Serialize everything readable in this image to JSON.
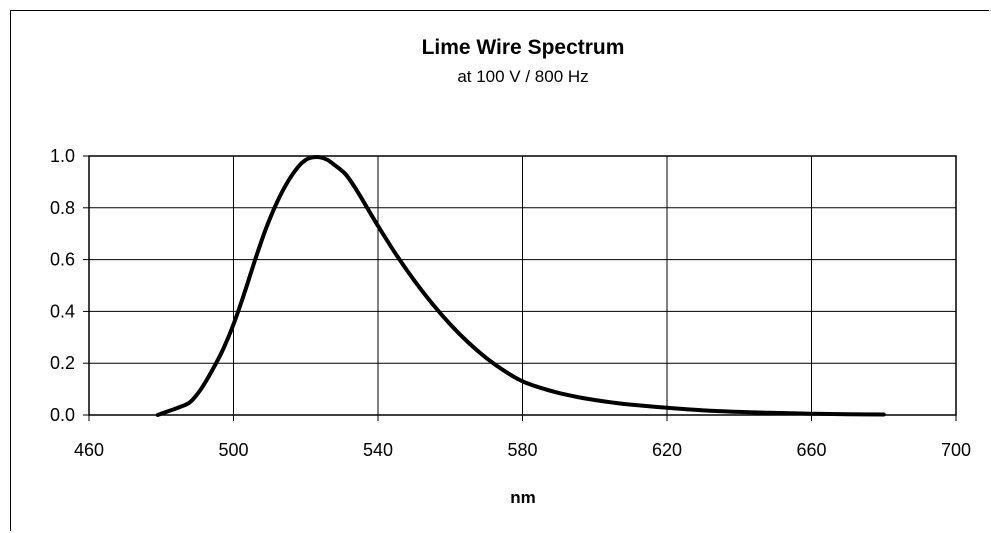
{
  "chart_data": {
    "type": "line",
    "title": "Lime Wire Spectrum",
    "subtitle": "at 100 V / 800 Hz",
    "xlabel": "nm",
    "ylabel": "",
    "xlim": [
      460,
      700
    ],
    "ylim": [
      0.0,
      1.0
    ],
    "x_ticks": [
      "460",
      "500",
      "540",
      "580",
      "620",
      "660",
      "700"
    ],
    "y_ticks": [
      "0.0",
      "0.2",
      "0.4",
      "0.6",
      "0.8",
      "1.0"
    ],
    "grid": true,
    "legend": "none",
    "line_color": "#000000",
    "series": [
      {
        "x": [
          479,
          482,
          485,
          488,
          491,
          494,
          497,
          500,
          503,
          506,
          509,
          512,
          515,
          518,
          520,
          522,
          524,
          526,
          528,
          531,
          534,
          537,
          540,
          545,
          550,
          555,
          560,
          565,
          570,
          575,
          580,
          585,
          590,
          595,
          600,
          605,
          610,
          620,
          630,
          640,
          650,
          660,
          670,
          680
        ],
        "y": [
          0.0,
          0.015,
          0.03,
          0.05,
          0.1,
          0.17,
          0.25,
          0.35,
          0.47,
          0.6,
          0.72,
          0.82,
          0.9,
          0.96,
          0.985,
          0.995,
          0.995,
          0.985,
          0.965,
          0.93,
          0.87,
          0.8,
          0.73,
          0.62,
          0.52,
          0.43,
          0.35,
          0.28,
          0.22,
          0.17,
          0.13,
          0.105,
          0.085,
          0.07,
          0.058,
          0.048,
          0.04,
          0.028,
          0.018,
          0.012,
          0.008,
          0.005,
          0.003,
          0.002
        ]
      }
    ]
  }
}
